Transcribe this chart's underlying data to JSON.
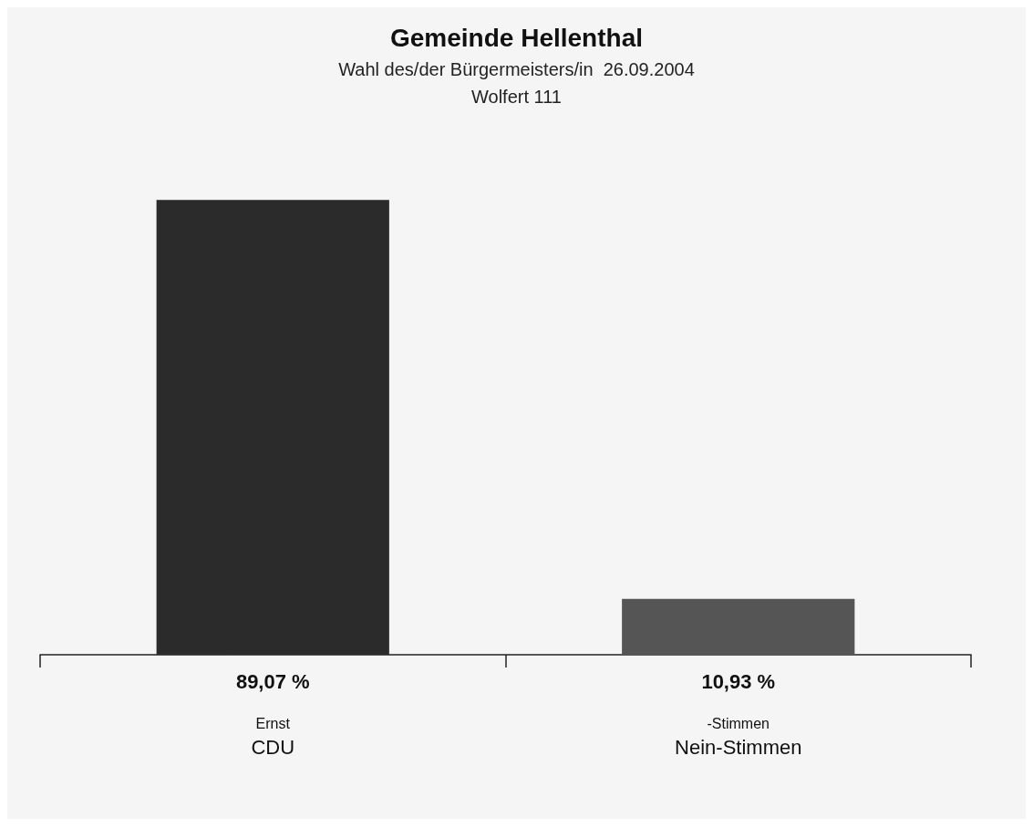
{
  "chart_data": {
    "type": "bar",
    "title": "Gemeinde Hellenthal",
    "subtitle": "Wahl des/der Bürgermeisters/in  26.09.2004\nWolfert 111",
    "categories": [
      "Ernst\nCDU",
      "-Stimmen\nNein-Stimmen"
    ],
    "values": [
      89.07,
      10.93
    ],
    "colors": [
      "#2b2b2b",
      "#555555"
    ],
    "value_labels": [
      "89,07 %",
      "10,93 %"
    ]
  }
}
